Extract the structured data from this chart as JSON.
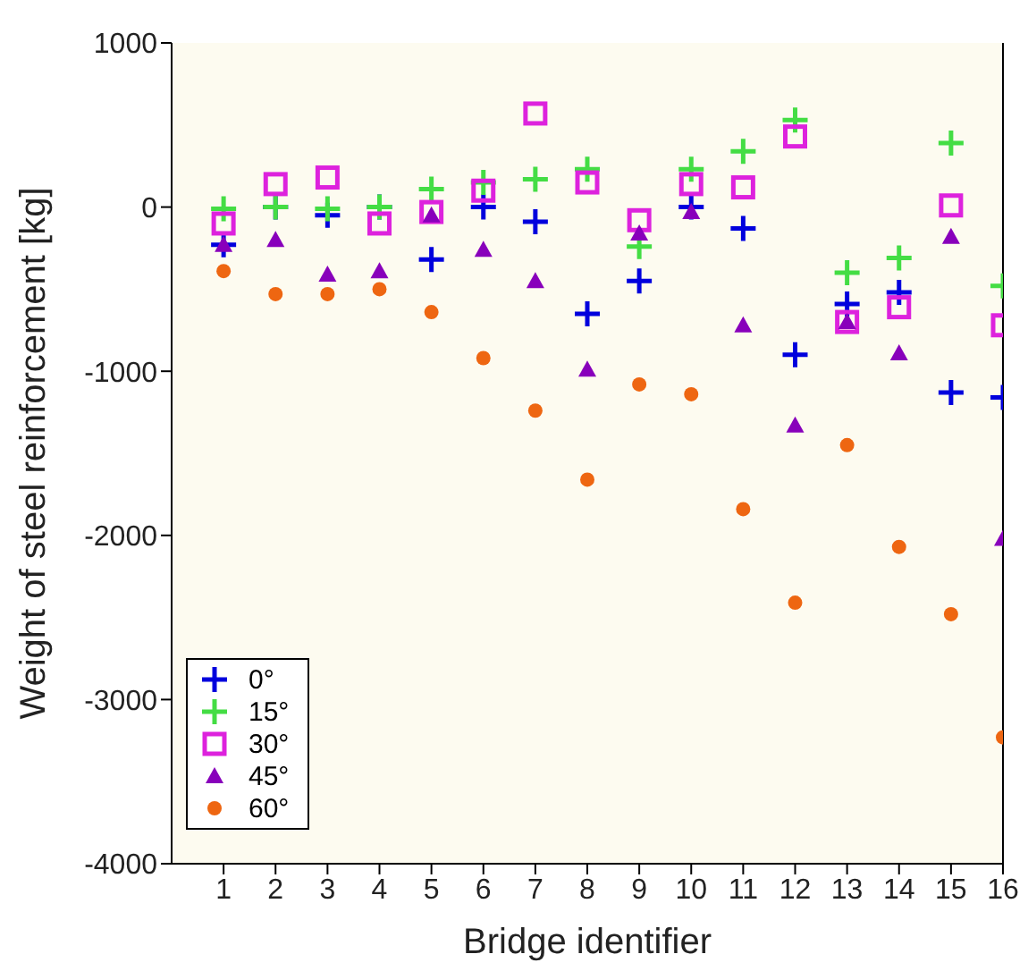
{
  "chart_data": {
    "type": "scatter",
    "xlabel": "Bridge identifier",
    "ylabel": "Weight of steel reinforcement [kg]",
    "x": [
      1,
      2,
      3,
      4,
      5,
      6,
      7,
      8,
      9,
      10,
      11,
      12,
      13,
      14,
      15,
      16
    ],
    "xlim": [
      0,
      16
    ],
    "xticks": [
      1,
      2,
      3,
      4,
      5,
      6,
      7,
      8,
      9,
      10,
      11,
      12,
      13,
      14,
      15,
      16
    ],
    "ylim": [
      -4000,
      1000
    ],
    "yticks": [
      -4000,
      -3000,
      -2000,
      -1000,
      0,
      1000
    ],
    "grid": false,
    "legend": "bottom left",
    "series": [
      {
        "name": "0°",
        "color": "#0000dd",
        "marker": "cross",
        "values": [
          -230,
          0,
          -50,
          0,
          -320,
          0,
          -90,
          -650,
          -450,
          0,
          -130,
          -900,
          -590,
          -520,
          -1130,
          -1160
        ]
      },
      {
        "name": "15°",
        "color": "#44dd44",
        "marker": "cross",
        "values": [
          -10,
          0,
          -10,
          0,
          110,
          150,
          170,
          230,
          -240,
          230,
          340,
          530,
          -400,
          -310,
          390,
          -480
        ]
      },
      {
        "name": "30°",
        "color": "#dd22dd",
        "marker": "square",
        "values": [
          -100,
          140,
          180,
          -100,
          -30,
          100,
          570,
          150,
          -80,
          140,
          120,
          430,
          -700,
          -610,
          10,
          -720
        ]
      },
      {
        "name": "45°",
        "color": "#8800bb",
        "marker": "triangle",
        "values": [
          -230,
          -200,
          -410,
          -390,
          -50,
          -260,
          -450,
          -990,
          -160,
          -30,
          -720,
          -1330,
          -700,
          -890,
          -180,
          -2020
        ]
      },
      {
        "name": "60°",
        "color": "#ee6611",
        "marker": "circle",
        "values": [
          -390,
          -530,
          -530,
          -500,
          -640,
          -920,
          -1240,
          -1660,
          -1080,
          -1140,
          -1840,
          -2410,
          -1450,
          -2070,
          -2480,
          -3230
        ]
      }
    ]
  }
}
